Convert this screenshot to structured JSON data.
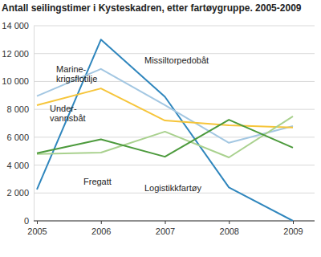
{
  "chart_data": {
    "type": "line",
    "title": "Antall seilingstimer i Kysteskadren, etter fartøygruppe. 2005-2009",
    "categories": [
      "2005",
      "2006",
      "2007",
      "2008",
      "2009"
    ],
    "series": [
      {
        "name": "Missiltorpedobåt",
        "color": "#2f86bd",
        "values": [
          2250,
          13000,
          8900,
          2400,
          0
        ]
      },
      {
        "name": "Marine-\nkrigsflotilje",
        "color": "#a3c7e2",
        "values": [
          8950,
          10900,
          8300,
          5600,
          6800
        ]
      },
      {
        "name": "Under-\nvannsbåt",
        "color": "#f6c53a",
        "values": [
          8300,
          9500,
          7200,
          6850,
          6700
        ]
      },
      {
        "name": "Fregatt",
        "color": "#a9d18e",
        "values": [
          4800,
          4900,
          6400,
          4550,
          7500
        ]
      },
      {
        "name": "Logistikkfartøy",
        "color": "#4c9a3c",
        "values": [
          4850,
          5850,
          4600,
          7250,
          5250
        ]
      }
    ],
    "ylim": [
      0,
      14000
    ],
    "yticks": [
      0,
      {
        "value": 2000,
        "label": "2 000"
      },
      {
        "value": 4000,
        "label": "4 000"
      },
      {
        "value": 6000,
        "label": "6 000"
      },
      {
        "value": 8000,
        "label": "8 000"
      },
      {
        "value": 10000,
        "label": "10 000"
      },
      {
        "value": 12000,
        "label": "12 000"
      },
      {
        "value": 14000,
        "label": "14 000"
      }
    ],
    "grid": true
  }
}
